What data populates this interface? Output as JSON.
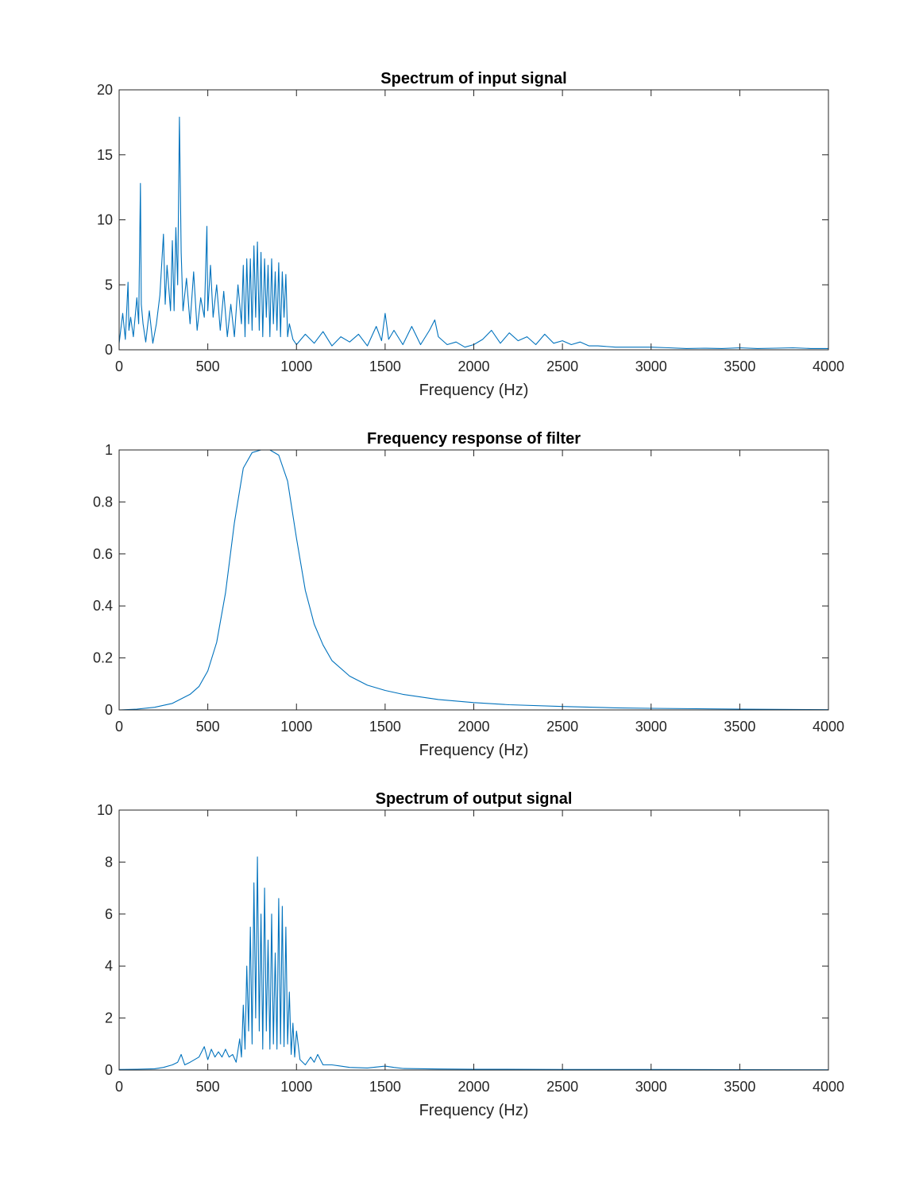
{
  "figure": {
    "background": "#ffffff"
  },
  "style": {
    "line_color": "#0072BD",
    "axis_color": "#262626"
  },
  "chart_data": [
    {
      "id": "input",
      "type": "line",
      "title": "Spectrum of input signal",
      "xlabel": "Frequency (Hz)",
      "ylabel": "",
      "xlim": [
        0,
        4000
      ],
      "ylim": [
        0,
        20
      ],
      "xticks": [
        0,
        500,
        1000,
        1500,
        2000,
        2500,
        3000,
        3500,
        4000
      ],
      "yticks": [
        0,
        5,
        10,
        15,
        20
      ],
      "ytick_labels": [
        "0",
        "5",
        "10",
        "15",
        "20"
      ],
      "grid": false,
      "series": [
        {
          "x": [
            0,
            20,
            35,
            50,
            55,
            65,
            80,
            100,
            110,
            120,
            125,
            135,
            150,
            170,
            190,
            210,
            230,
            250,
            260,
            270,
            290,
            300,
            310,
            320,
            330,
            340,
            350,
            360,
            380,
            400,
            420,
            440,
            460,
            480,
            495,
            500,
            515,
            530,
            550,
            570,
            590,
            610,
            630,
            650,
            670,
            690,
            700,
            710,
            720,
            730,
            740,
            750,
            760,
            770,
            780,
            790,
            800,
            810,
            820,
            830,
            840,
            850,
            860,
            870,
            880,
            890,
            900,
            910,
            920,
            930,
            940,
            950,
            960,
            980,
            1000,
            1050,
            1100,
            1150,
            1200,
            1250,
            1300,
            1350,
            1400,
            1450,
            1480,
            1500,
            1520,
            1550,
            1600,
            1650,
            1700,
            1750,
            1780,
            1800,
            1850,
            1900,
            1950,
            2000,
            2050,
            2100,
            2150,
            2200,
            2250,
            2300,
            2350,
            2400,
            2450,
            2500,
            2550,
            2600,
            2650,
            2700,
            2800,
            2900,
            3000,
            3100,
            3200,
            3300,
            3400,
            3500,
            3600,
            3700,
            3800,
            3900,
            4000
          ],
          "y": [
            0.5,
            2.8,
            0.8,
            5.2,
            1.5,
            2.5,
            1.0,
            4.0,
            2.0,
            12.8,
            3.5,
            2.0,
            0.6,
            3.0,
            0.5,
            2.0,
            4.2,
            8.9,
            3.5,
            6.5,
            3.0,
            8.4,
            3.0,
            9.4,
            5.0,
            17.9,
            7.5,
            3.0,
            5.5,
            2.0,
            6.0,
            1.5,
            4.0,
            2.5,
            9.5,
            3.0,
            6.5,
            2.5,
            5.0,
            1.5,
            4.5,
            1.0,
            3.5,
            1.0,
            5.0,
            2.0,
            6.5,
            1.0,
            7.0,
            2.0,
            7.0,
            1.5,
            8.0,
            2.5,
            8.3,
            1.5,
            7.5,
            1.0,
            7.0,
            2.5,
            6.5,
            1.0,
            7.0,
            2.0,
            6.0,
            1.5,
            6.7,
            1.0,
            6.0,
            2.5,
            5.8,
            1.0,
            2.0,
            0.8,
            0.4,
            1.2,
            0.5,
            1.4,
            0.3,
            1.0,
            0.6,
            1.2,
            0.3,
            1.8,
            0.7,
            2.8,
            0.8,
            1.5,
            0.4,
            1.8,
            0.4,
            1.5,
            2.3,
            1.0,
            0.4,
            0.6,
            0.2,
            0.4,
            0.8,
            1.5,
            0.5,
            1.3,
            0.7,
            1.0,
            0.4,
            1.2,
            0.5,
            0.7,
            0.4,
            0.6,
            0.3,
            0.3,
            0.2,
            0.2,
            0.2,
            0.15,
            0.1,
            0.12,
            0.1,
            0.15,
            0.1,
            0.12,
            0.15,
            0.1,
            0.1
          ]
        }
      ]
    },
    {
      "id": "filter",
      "type": "line",
      "title": "Frequency response of filter",
      "xlabel": "Frequency (Hz)",
      "ylabel": "",
      "xlim": [
        0,
        4000
      ],
      "ylim": [
        0,
        1
      ],
      "xticks": [
        0,
        500,
        1000,
        1500,
        2000,
        2500,
        3000,
        3500,
        4000
      ],
      "yticks": [
        0,
        0.2,
        0.4,
        0.6,
        0.8,
        1
      ],
      "ytick_labels": [
        "0",
        "0.2",
        "0.4",
        "0.6",
        "0.8",
        "1"
      ],
      "grid": false,
      "series": [
        {
          "x": [
            0,
            100,
            200,
            300,
            400,
            450,
            500,
            550,
            600,
            650,
            700,
            750,
            800,
            850,
            900,
            950,
            1000,
            1050,
            1100,
            1150,
            1200,
            1300,
            1400,
            1500,
            1600,
            1800,
            2000,
            2200,
            2500,
            2800,
            3000,
            3500,
            4000
          ],
          "y": [
            0,
            0.003,
            0.01,
            0.025,
            0.06,
            0.09,
            0.15,
            0.26,
            0.45,
            0.72,
            0.93,
            0.99,
            1.0,
            1.0,
            0.98,
            0.88,
            0.66,
            0.46,
            0.33,
            0.25,
            0.19,
            0.13,
            0.095,
            0.075,
            0.06,
            0.04,
            0.028,
            0.02,
            0.013,
            0.008,
            0.006,
            0.003,
            0.001
          ]
        }
      ]
    },
    {
      "id": "output",
      "type": "line",
      "title": "Spectrum of output signal",
      "xlabel": "Frequency (Hz)",
      "ylabel": "",
      "xlim": [
        0,
        4000
      ],
      "ylim": [
        0,
        10
      ],
      "xticks": [
        0,
        500,
        1000,
        1500,
        2000,
        2500,
        3000,
        3500,
        4000
      ],
      "yticks": [
        0,
        2,
        4,
        6,
        8,
        10
      ],
      "ytick_labels": [
        "0",
        "2",
        "4",
        "6",
        "8",
        "10"
      ],
      "grid": false,
      "series": [
        {
          "x": [
            0,
            100,
            200,
            250,
            300,
            330,
            350,
            370,
            400,
            450,
            480,
            500,
            520,
            540,
            560,
            580,
            600,
            620,
            640,
            660,
            680,
            690,
            700,
            710,
            720,
            730,
            740,
            750,
            760,
            770,
            780,
            790,
            800,
            810,
            820,
            830,
            840,
            850,
            860,
            870,
            880,
            890,
            900,
            910,
            920,
            930,
            940,
            950,
            960,
            970,
            980,
            990,
            1000,
            1020,
            1050,
            1080,
            1100,
            1120,
            1150,
            1200,
            1250,
            1300,
            1400,
            1500,
            1550,
            1600,
            1800,
            2000,
            2500,
            3000,
            3500,
            4000
          ],
          "y": [
            0.02,
            0.03,
            0.05,
            0.1,
            0.2,
            0.3,
            0.6,
            0.2,
            0.3,
            0.5,
            0.9,
            0.4,
            0.8,
            0.5,
            0.7,
            0.5,
            0.8,
            0.5,
            0.6,
            0.3,
            1.2,
            0.5,
            2.5,
            0.8,
            4.0,
            1.5,
            5.5,
            1.0,
            7.2,
            2.0,
            8.2,
            1.5,
            6.0,
            0.8,
            7.0,
            1.5,
            5.0,
            0.8,
            6.0,
            1.0,
            4.5,
            0.8,
            6.6,
            1.0,
            6.3,
            0.9,
            5.5,
            1.0,
            3.0,
            0.6,
            1.8,
            0.5,
            1.5,
            0.4,
            0.2,
            0.5,
            0.3,
            0.6,
            0.2,
            0.2,
            0.15,
            0.1,
            0.08,
            0.15,
            0.1,
            0.06,
            0.04,
            0.03,
            0.02,
            0.02,
            0.015,
            0.01
          ]
        }
      ]
    }
  ]
}
